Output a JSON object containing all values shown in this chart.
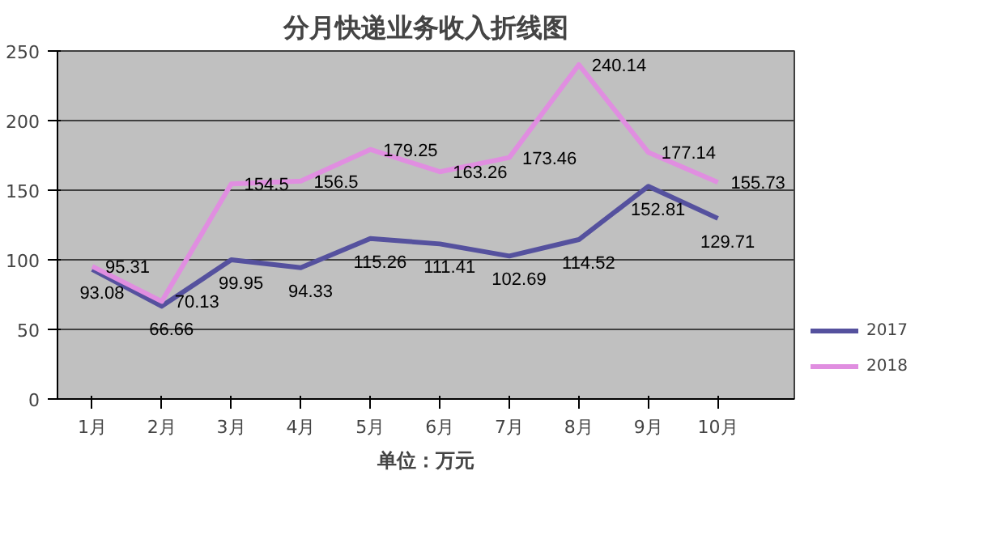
{
  "chart_data": {
    "type": "line",
    "title": "分月快递业务收入折线图",
    "xlabel": "单位：万元",
    "categories": [
      "1月",
      "2月",
      "3月",
      "4月",
      "5月",
      "6月",
      "7月",
      "8月",
      "9月",
      "10月"
    ],
    "series": [
      {
        "name": "2017",
        "color": "#55519e",
        "values": [
          93.08,
          66.66,
          99.95,
          94.33,
          115.26,
          111.41,
          102.69,
          114.52,
          152.81,
          129.71
        ]
      },
      {
        "name": "2018",
        "color": "#e08ee0",
        "values": [
          95.31,
          70.13,
          154.5,
          156.5,
          179.25,
          163.26,
          173.46,
          240.14,
          177.14,
          155.73
        ]
      }
    ],
    "ylim": [
      0,
      250
    ],
    "yticks": [
      0,
      50,
      100,
      150,
      200,
      250
    ],
    "grid": "y",
    "legend": "right",
    "data_labels": true,
    "marker": "none",
    "line_style": "solid"
  }
}
